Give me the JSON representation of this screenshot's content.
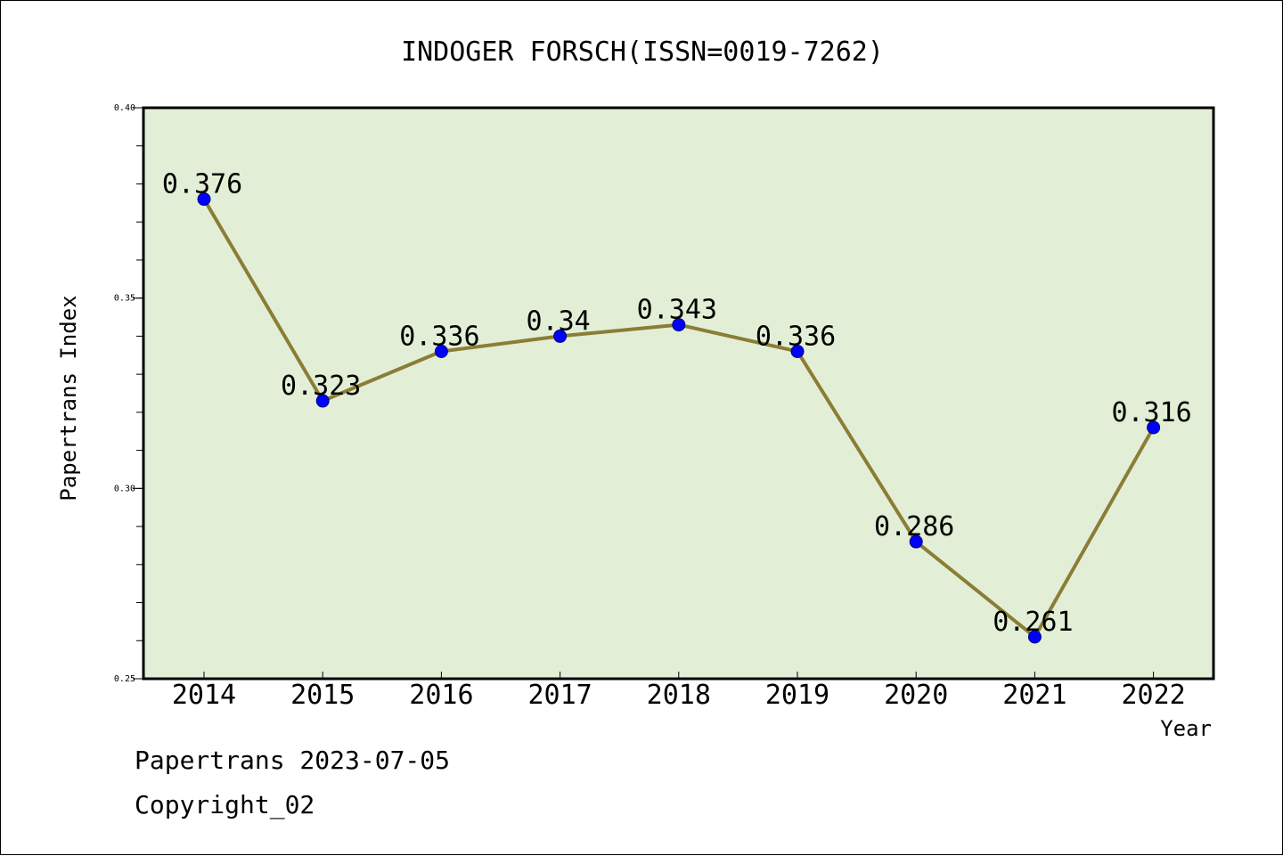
{
  "chart_data": {
    "type": "line",
    "title": "INDOGER FORSCH(ISSN=0019-7262)",
    "xlabel": "Year",
    "ylabel": "Papertrans Index",
    "categories": [
      "2014",
      "2015",
      "2016",
      "2017",
      "2018",
      "2019",
      "2020",
      "2021",
      "2022"
    ],
    "values": [
      0.376,
      0.323,
      0.336,
      0.34,
      0.343,
      0.336,
      0.286,
      0.261,
      0.316
    ],
    "data_labels": [
      "0.376",
      "0.323",
      "0.336",
      "0.34",
      "0.343",
      "0.336",
      "0.286",
      "0.261",
      "0.316"
    ],
    "ylim": [
      0.25,
      0.4
    ],
    "yticks": [
      0.25,
      0.3,
      0.35,
      0.4
    ],
    "ytick_labels": [
      "0.25",
      "0.30",
      "0.35",
      "0.40"
    ],
    "grid": false,
    "colors": {
      "plot_background": "#e2efd6",
      "line": "#8b7d36",
      "marker": "#0000ff"
    }
  },
  "footer": {
    "date_line": "Papertrans 2023-07-05",
    "copyright_line": "Copyright_02"
  }
}
